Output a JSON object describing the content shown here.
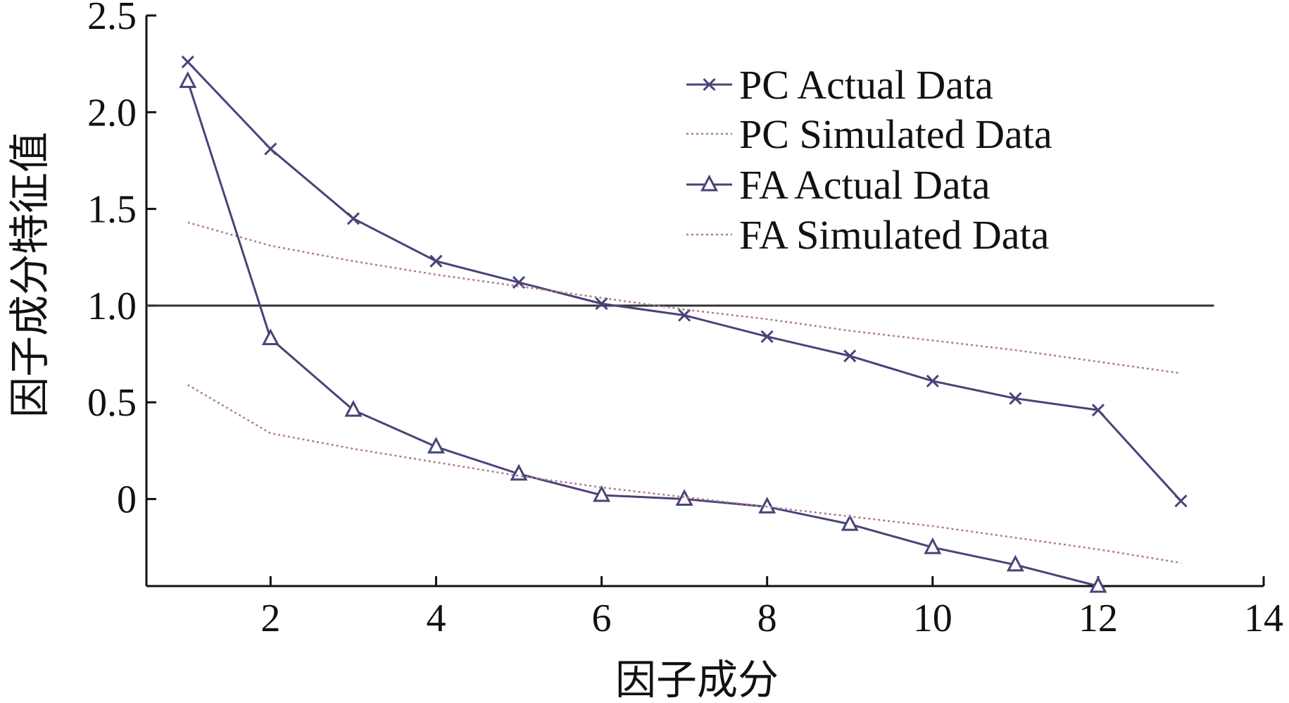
{
  "chart_data": {
    "type": "line",
    "title": "",
    "xlabel": "因子成分",
    "ylabel": "因子成分特征值",
    "xlim": [
      0.5,
      14
    ],
    "ylim": [
      -0.45,
      2.5
    ],
    "xticks": [
      2,
      4,
      6,
      8,
      10,
      12,
      14
    ],
    "xtick_labels": [
      "2",
      "4",
      "6",
      "8",
      "10",
      "12",
      "14"
    ],
    "yticks": [
      0,
      0.5,
      1.0,
      1.5,
      2.0,
      2.5
    ],
    "ytick_labels": [
      "0",
      "0.5",
      "1.0",
      "1.5",
      "2.0",
      "2.5"
    ],
    "reference_line": {
      "y": 1.0,
      "x_range": [
        0.5,
        13.4
      ],
      "color": "#333333"
    },
    "grid": false,
    "legend_position": "top-right",
    "series": [
      {
        "name": "PC Actual Data",
        "marker": "x",
        "line": "solid",
        "color": "#4a4378",
        "x": [
          1,
          2,
          3,
          4,
          5,
          6,
          7,
          8,
          9,
          10,
          11,
          12,
          13
        ],
        "y": [
          2.26,
          1.81,
          1.45,
          1.23,
          1.12,
          1.01,
          0.95,
          0.84,
          0.74,
          0.61,
          0.52,
          0.46,
          -0.01
        ]
      },
      {
        "name": "PC Simulated Data",
        "marker": "none",
        "line": "dotted",
        "color": "#b07a8e",
        "x": [
          1,
          2,
          3,
          4,
          5,
          6,
          7,
          8,
          9,
          10,
          11,
          12,
          13
        ],
        "y": [
          1.43,
          1.31,
          1.23,
          1.16,
          1.1,
          1.04,
          0.98,
          0.93,
          0.87,
          0.82,
          0.77,
          0.71,
          0.65
        ]
      },
      {
        "name": "FA Actual Data",
        "marker": "triangle",
        "line": "solid",
        "color": "#4a4378",
        "x": [
          1,
          2,
          3,
          4,
          5,
          6,
          7,
          8,
          9,
          10,
          11,
          12
        ],
        "y": [
          2.16,
          0.83,
          0.46,
          0.27,
          0.13,
          0.02,
          0.0,
          -0.04,
          -0.13,
          -0.25,
          -0.34,
          -0.45
        ]
      },
      {
        "name": "FA Simulated Data",
        "marker": "none",
        "line": "dotted",
        "color": "#b07a8e",
        "x": [
          1,
          2,
          3,
          4,
          5,
          6,
          7,
          8,
          9,
          10,
          11,
          12,
          13
        ],
        "y": [
          0.59,
          0.34,
          0.26,
          0.19,
          0.12,
          0.06,
          0.01,
          -0.04,
          -0.09,
          -0.14,
          -0.2,
          -0.26,
          -0.33
        ]
      }
    ]
  }
}
